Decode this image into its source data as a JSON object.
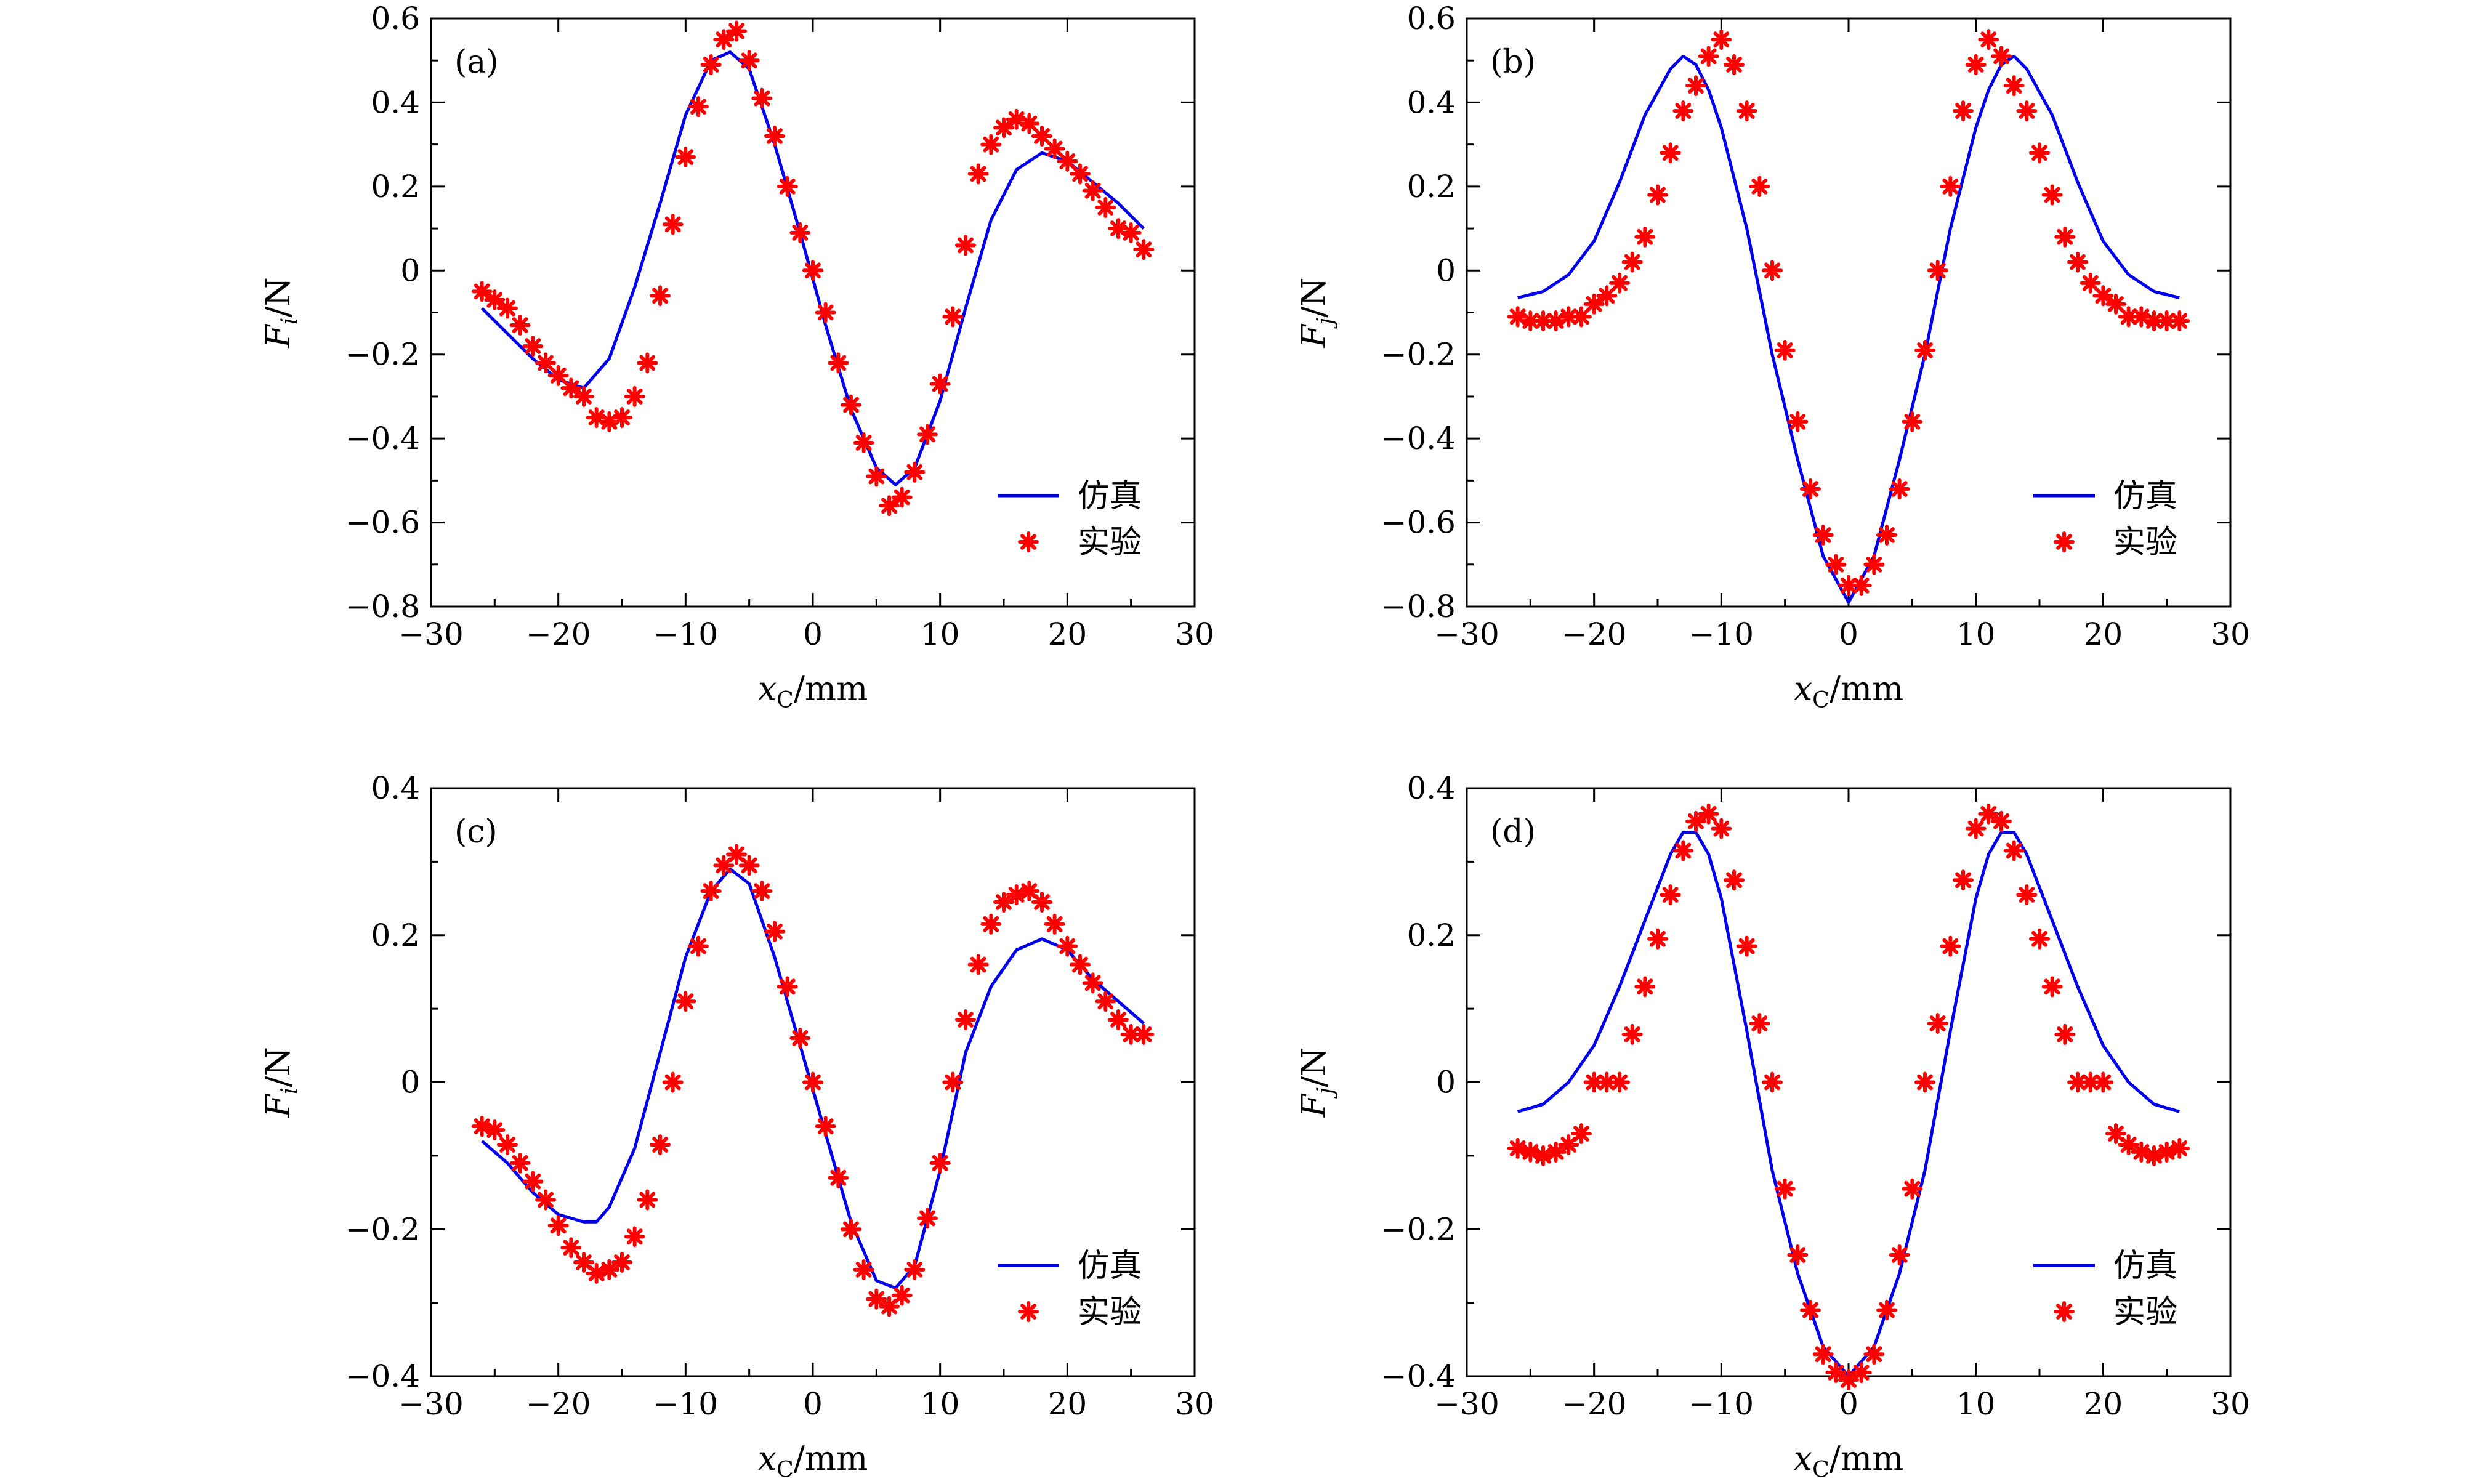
{
  "colors": {
    "sim": "#0000ee",
    "exp": "#ff0000",
    "axis": "#000000"
  },
  "legend": {
    "sim_label": "仿真",
    "exp_label": "实验"
  },
  "xlabel": {
    "main": "x",
    "sub": "C",
    "unit": "/mm"
  },
  "chart_data": [
    {
      "panel": "(a)",
      "type": "line",
      "ylabel": {
        "main": "F",
        "sub": "i",
        "unit": "/N"
      },
      "xlim": [
        -30,
        30
      ],
      "ylim": [
        -0.8,
        0.6
      ],
      "xticks": [
        -30,
        -20,
        -10,
        0,
        10,
        20,
        30
      ],
      "xtick_labels": [
        "−30",
        "−20",
        "−10",
        "0",
        "10",
        "20",
        "30"
      ],
      "yticks": [
        -0.8,
        -0.6,
        -0.4,
        -0.2,
        0,
        0.2,
        0.4,
        0.6
      ],
      "ytick_labels": [
        "−0.8",
        "−0.6",
        "−0.4",
        "−0.2",
        "0",
        "0.2",
        "0.4",
        "0.6"
      ],
      "legend_position": "bottom-right",
      "series": [
        {
          "name": "仿真",
          "style": "line",
          "x": [
            -26,
            -24,
            -22,
            -20,
            -18,
            -16,
            -14,
            -12,
            -10,
            -8,
            -6.5,
            -5,
            -3,
            -1,
            1,
            3,
            5,
            6.5,
            8,
            10,
            12,
            14,
            16,
            18,
            20,
            22,
            24,
            26
          ],
          "y": [
            -0.09,
            -0.15,
            -0.21,
            -0.26,
            -0.28,
            -0.21,
            -0.04,
            0.16,
            0.37,
            0.5,
            0.52,
            0.48,
            0.3,
            0.09,
            -0.13,
            -0.33,
            -0.47,
            -0.51,
            -0.47,
            -0.31,
            -0.09,
            0.12,
            0.24,
            0.28,
            0.26,
            0.21,
            0.16,
            0.1
          ]
        },
        {
          "name": "实验",
          "style": "marker",
          "x": [
            -26,
            -25,
            -24,
            -23,
            -22,
            -21,
            -20,
            -19,
            -18,
            -17,
            -16,
            -15,
            -14,
            -13,
            -12,
            -11,
            -10,
            -9,
            -8,
            -7,
            -6,
            -5,
            -4,
            -3,
            -2,
            -1,
            0,
            1,
            2,
            3,
            4,
            5,
            6,
            7,
            8,
            9,
            10,
            11,
            12,
            13,
            14,
            15,
            16,
            17,
            18,
            19,
            20,
            21,
            22,
            23,
            24,
            25,
            26
          ],
          "y": [
            -0.05,
            -0.07,
            -0.09,
            -0.13,
            -0.18,
            -0.22,
            -0.25,
            -0.28,
            -0.3,
            -0.35,
            -0.36,
            -0.35,
            -0.3,
            -0.22,
            -0.06,
            0.11,
            0.27,
            0.39,
            0.49,
            0.55,
            0.57,
            0.5,
            0.41,
            0.32,
            0.2,
            0.09,
            0.0,
            -0.1,
            -0.22,
            -0.32,
            -0.41,
            -0.49,
            -0.56,
            -0.54,
            -0.48,
            -0.39,
            -0.27,
            -0.11,
            0.06,
            0.23,
            0.3,
            0.34,
            0.36,
            0.35,
            0.32,
            0.29,
            0.26,
            0.23,
            0.19,
            0.15,
            0.1,
            0.09,
            0.05
          ]
        }
      ]
    },
    {
      "panel": "(b)",
      "type": "line",
      "ylabel": {
        "main": "F",
        "sub": "j",
        "unit": "/N"
      },
      "xlim": [
        -30,
        30
      ],
      "ylim": [
        -0.8,
        0.6
      ],
      "xticks": [
        -30,
        -20,
        -10,
        0,
        10,
        20,
        30
      ],
      "xtick_labels": [
        "−30",
        "−20",
        "−10",
        "0",
        "10",
        "20",
        "30"
      ],
      "yticks": [
        -0.8,
        -0.6,
        -0.4,
        -0.2,
        0,
        0.2,
        0.4,
        0.6
      ],
      "ytick_labels": [
        "−0.8",
        "−0.6",
        "−0.4",
        "−0.2",
        "0",
        "0.2",
        "0.4",
        "0.6"
      ],
      "legend_position": "bottom-right",
      "series": [
        {
          "name": "仿真",
          "style": "line",
          "x": [
            -26,
            -24,
            -22,
            -20,
            -18,
            -16,
            -14,
            -13,
            -12,
            -11,
            -10,
            -8,
            -6,
            -4,
            -2,
            0,
            2,
            4,
            6,
            8,
            10,
            11,
            12,
            13,
            14,
            16,
            18,
            20,
            22,
            24,
            26
          ],
          "y": [
            -0.065,
            -0.05,
            -0.01,
            0.07,
            0.21,
            0.37,
            0.48,
            0.51,
            0.49,
            0.43,
            0.34,
            0.1,
            -0.2,
            -0.45,
            -0.68,
            -0.79,
            -0.68,
            -0.45,
            -0.2,
            0.1,
            0.34,
            0.43,
            0.49,
            0.51,
            0.48,
            0.37,
            0.21,
            0.07,
            -0.01,
            -0.05,
            -0.065
          ]
        },
        {
          "name": "实验",
          "style": "marker",
          "x": [
            -26,
            -25,
            -24,
            -23,
            -22,
            -21,
            -20,
            -19,
            -18,
            -17,
            -16,
            -15,
            -14,
            -13,
            -12,
            -11,
            -10,
            -9,
            -8,
            -7,
            -6,
            -5,
            -4,
            -3,
            -2,
            -1,
            0,
            1,
            2,
            3,
            4,
            5,
            6,
            7,
            8,
            9,
            10,
            11,
            12,
            13,
            14,
            15,
            16,
            17,
            18,
            19,
            20,
            21,
            22,
            23,
            24,
            25,
            26
          ],
          "y": [
            -0.11,
            -0.12,
            -0.12,
            -0.12,
            -0.11,
            -0.11,
            -0.08,
            -0.06,
            -0.03,
            0.02,
            0.08,
            0.18,
            0.28,
            0.38,
            0.44,
            0.51,
            0.55,
            0.49,
            0.38,
            0.2,
            0.0,
            -0.19,
            -0.36,
            -0.52,
            -0.63,
            -0.7,
            -0.75,
            -0.75,
            -0.7,
            -0.63,
            -0.52,
            -0.36,
            -0.19,
            0.0,
            0.2,
            0.38,
            0.49,
            0.55,
            0.51,
            0.44,
            0.38,
            0.28,
            0.18,
            0.08,
            0.02,
            -0.03,
            -0.06,
            -0.08,
            -0.11,
            -0.11,
            -0.12,
            -0.12,
            -0.12
          ]
        }
      ]
    },
    {
      "panel": "(c)",
      "type": "line",
      "ylabel": {
        "main": "F",
        "sub": "i",
        "unit": "/N"
      },
      "xlim": [
        -30,
        30
      ],
      "ylim": [
        -0.4,
        0.4
      ],
      "xticks": [
        -30,
        -20,
        -10,
        0,
        10,
        20,
        30
      ],
      "xtick_labels": [
        "−30",
        "−20",
        "−10",
        "0",
        "10",
        "20",
        "30"
      ],
      "yticks": [
        -0.4,
        -0.2,
        0,
        0.2,
        0.4
      ],
      "ytick_labels": [
        "−0.4",
        "−0.2",
        "0",
        "0.2",
        "0.4"
      ],
      "legend_position": "bottom-right",
      "series": [
        {
          "name": "仿真",
          "style": "line",
          "x": [
            -26,
            -24,
            -22,
            -20,
            -18,
            -17,
            -16,
            -14,
            -12,
            -10,
            -8,
            -6.5,
            -5,
            -3,
            -1,
            1,
            3,
            5,
            6.5,
            8,
            10,
            12,
            14,
            16,
            18,
            20,
            22,
            24,
            26
          ],
          "y": [
            -0.08,
            -0.11,
            -0.15,
            -0.18,
            -0.19,
            -0.19,
            -0.17,
            -0.09,
            0.04,
            0.17,
            0.26,
            0.29,
            0.27,
            0.17,
            0.05,
            -0.07,
            -0.19,
            -0.27,
            -0.28,
            -0.25,
            -0.12,
            0.04,
            0.13,
            0.18,
            0.195,
            0.18,
            0.14,
            0.11,
            0.08
          ]
        },
        {
          "name": "实验",
          "style": "marker",
          "x": [
            -26,
            -25,
            -24,
            -23,
            -22,
            -21,
            -20,
            -19,
            -18,
            -17,
            -16,
            -15,
            -14,
            -13,
            -12,
            -11,
            -10,
            -9,
            -8,
            -7,
            -6,
            -5,
            -4,
            -3,
            -2,
            -1,
            0,
            1,
            2,
            3,
            4,
            5,
            6,
            7,
            8,
            9,
            10,
            11,
            12,
            13,
            14,
            15,
            16,
            17,
            18,
            19,
            20,
            21,
            22,
            23,
            24,
            25,
            26
          ],
          "y": [
            -0.06,
            -0.065,
            -0.085,
            -0.11,
            -0.135,
            -0.16,
            -0.195,
            -0.225,
            -0.245,
            -0.26,
            -0.255,
            -0.245,
            -0.21,
            -0.16,
            -0.085,
            0.0,
            0.11,
            0.185,
            0.26,
            0.295,
            0.31,
            0.295,
            0.26,
            0.205,
            0.13,
            0.06,
            0.0,
            -0.06,
            -0.13,
            -0.2,
            -0.255,
            -0.295,
            -0.305,
            -0.29,
            -0.255,
            -0.185,
            -0.11,
            0.0,
            0.085,
            0.16,
            0.215,
            0.245,
            0.255,
            0.26,
            0.245,
            0.215,
            0.185,
            0.16,
            0.135,
            0.11,
            0.085,
            0.065,
            0.065
          ]
        }
      ]
    },
    {
      "panel": "(d)",
      "type": "line",
      "ylabel": {
        "main": "F",
        "sub": "j",
        "unit": "/N"
      },
      "xlim": [
        -30,
        30
      ],
      "ylim": [
        -0.4,
        0.4
      ],
      "xticks": [
        -30,
        -20,
        -10,
        0,
        10,
        20,
        30
      ],
      "xtick_labels": [
        "−30",
        "−20",
        "−10",
        "0",
        "10",
        "20",
        "30"
      ],
      "yticks": [
        -0.4,
        -0.2,
        0,
        0.2,
        0.4
      ],
      "ytick_labels": [
        "−0.4",
        "−0.2",
        "0",
        "0.2",
        "0.4"
      ],
      "legend_position": "bottom-right",
      "series": [
        {
          "name": "仿真",
          "style": "line",
          "x": [
            -26,
            -24,
            -22,
            -20,
            -18,
            -16,
            -14,
            -13,
            -12,
            -11,
            -10,
            -8,
            -6,
            -4,
            -2,
            0,
            2,
            4,
            6,
            8,
            10,
            11,
            12,
            13,
            14,
            16,
            18,
            20,
            22,
            24,
            26
          ],
          "y": [
            -0.04,
            -0.03,
            0.0,
            0.05,
            0.13,
            0.22,
            0.31,
            0.34,
            0.34,
            0.31,
            0.25,
            0.07,
            -0.12,
            -0.26,
            -0.36,
            -0.4,
            -0.36,
            -0.26,
            -0.12,
            0.07,
            0.25,
            0.31,
            0.34,
            0.34,
            0.31,
            0.22,
            0.13,
            0.05,
            0.0,
            -0.03,
            -0.04
          ]
        },
        {
          "name": "实验",
          "style": "marker",
          "x": [
            -26,
            -25,
            -24,
            -23,
            -22,
            -21,
            -20,
            -19,
            -18,
            -17,
            -16,
            -15,
            -14,
            -13,
            -12,
            -11,
            -10,
            -9,
            -8,
            -7,
            -6,
            -5,
            -4,
            -3,
            -2,
            -1,
            0,
            1,
            2,
            3,
            4,
            5,
            6,
            7,
            8,
            9,
            10,
            11,
            12,
            13,
            14,
            15,
            16,
            17,
            18,
            19,
            20,
            21,
            22,
            23,
            24,
            25,
            26
          ],
          "y": [
            -0.09,
            -0.095,
            -0.1,
            -0.095,
            -0.085,
            -0.07,
            0.0,
            0.0,
            0.0,
            0.065,
            0.13,
            0.195,
            0.255,
            0.315,
            0.355,
            0.365,
            0.345,
            0.275,
            0.185,
            0.08,
            0.0,
            -0.145,
            -0.235,
            -0.31,
            -0.37,
            -0.395,
            -0.405,
            -0.395,
            -0.37,
            -0.31,
            -0.235,
            -0.145,
            0.0,
            0.08,
            0.185,
            0.275,
            0.345,
            0.365,
            0.355,
            0.315,
            0.255,
            0.195,
            0.13,
            0.065,
            0.0,
            0.0,
            0.0,
            -0.07,
            -0.085,
            -0.095,
            -0.1,
            -0.095,
            -0.09
          ]
        }
      ]
    }
  ]
}
